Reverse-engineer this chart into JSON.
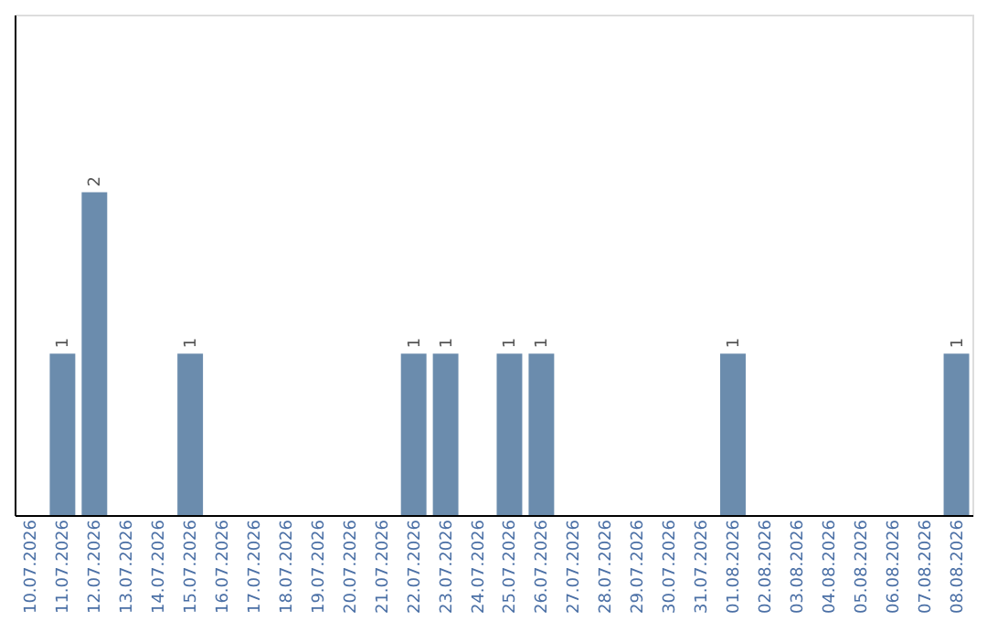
{
  "chart_data": {
    "type": "bar",
    "categories": [
      "10.07.2026",
      "11.07.2026",
      "12.07.2026",
      "13.07.2026",
      "14.07.2026",
      "15.07.2026",
      "16.07.2026",
      "17.07.2026",
      "18.07.2026",
      "19.07.2026",
      "20.07.2026",
      "21.07.2026",
      "22.07.2026",
      "23.07.2026",
      "24.07.2026",
      "25.07.2026",
      "26.07.2026",
      "27.07.2026",
      "28.07.2026",
      "29.07.2026",
      "30.07.2026",
      "31.07.2026",
      "01.08.2026",
      "02.08.2026",
      "03.08.2026",
      "04.08.2026",
      "05.08.2026",
      "06.08.2026",
      "07.08.2026",
      "08.08.2026"
    ],
    "values": [
      null,
      1,
      2,
      null,
      null,
      1,
      null,
      null,
      null,
      null,
      null,
      null,
      1,
      1,
      null,
      1,
      1,
      null,
      null,
      null,
      null,
      null,
      1,
      null,
      null,
      null,
      null,
      null,
      null,
      1
    ],
    "color": "#6b8cad",
    "ylim": [
      0,
      3.1
    ],
    "data_labels": true,
    "tick_labels": "x",
    "grid": false
  }
}
